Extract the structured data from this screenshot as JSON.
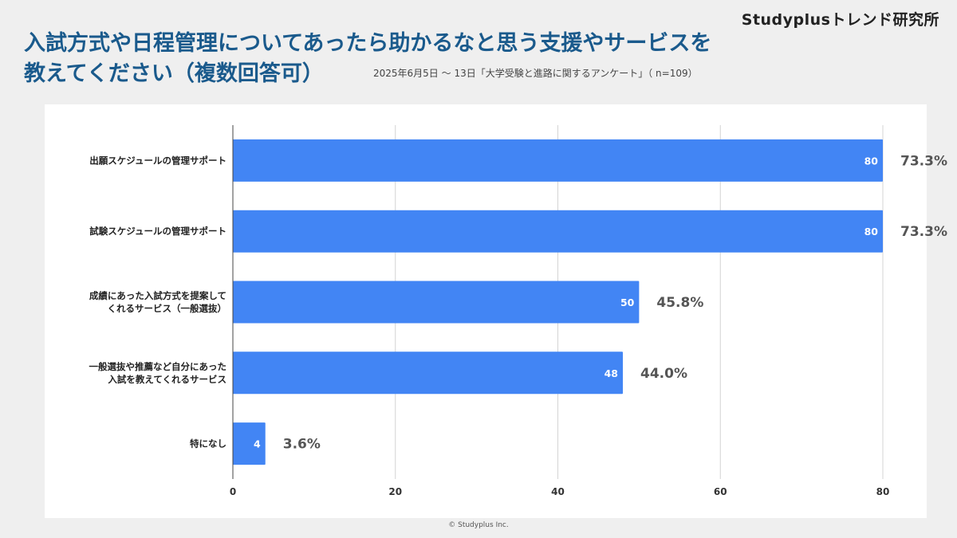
{
  "brand": "Studyplusトレンド研究所",
  "title_line1": "入試方式や日程管理についてあったら助かるなと思う支援やサービスを",
  "title_line2": "教えてください（複数回答可）",
  "subtitle": "2025年6月5日 〜 13日「大学受験と進路に関するアンケート」（ n=109）",
  "copyright": "© Studyplus Inc.",
  "colors": {
    "bar": "#4285f4",
    "title": "#1a5a8c",
    "percent": "#555555"
  },
  "chart_data": {
    "type": "bar",
    "orientation": "horizontal",
    "categories": [
      [
        "出願スケジュールの管理サポート"
      ],
      [
        "試験スケジュールの管理サポート"
      ],
      [
        "成績にあった入試方式を提案して",
        "くれるサービス（一般選抜）"
      ],
      [
        "一般選抜や推薦など自分にあった",
        "入試を教えてくれるサービス"
      ],
      [
        "特になし"
      ]
    ],
    "values": [
      80,
      80,
      50,
      48,
      4
    ],
    "data_labels": [
      "80",
      "80",
      "50",
      "48",
      "4"
    ],
    "percent_labels": [
      "73.3%",
      "73.3%",
      "45.8%",
      "44.0%",
      "3.6%"
    ],
    "xlim": [
      0,
      80
    ],
    "xticks": [
      0,
      20,
      40,
      60,
      80
    ],
    "grid": true
  }
}
